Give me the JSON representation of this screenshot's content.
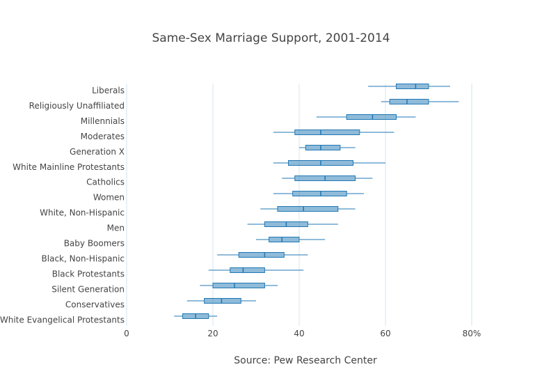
{
  "chart_data": {
    "type": "box",
    "title": "Same-Sex Marriage Support, 2001-2014",
    "xlabel": "Source: Pew Research Center",
    "ylabel": "",
    "xlim": [
      0,
      85
    ],
    "xticks": [
      0,
      20,
      40,
      60,
      80
    ],
    "xtick_labels": [
      "0",
      "20",
      "40",
      "60",
      "80%"
    ],
    "grid": true,
    "color": "#1f77b4",
    "gridcolor": "#d6e6f2",
    "categories": [
      "Liberals",
      "Religiously Unaffiliated",
      "Millennials",
      "Moderates",
      "Generation X",
      "White Mainline Protestants",
      "Catholics",
      "Women",
      "White, Non-Hispanic",
      "Men",
      "Baby Boomers",
      "Black, Non-Hispanic",
      "Black Protestants",
      "Silent Generation",
      "Conservatives",
      "White Evangelical Protestants"
    ],
    "boxes": [
      {
        "min": 56,
        "q1": 62.5,
        "median": 67,
        "q3": 70,
        "max": 75
      },
      {
        "min": 59,
        "q1": 61,
        "median": 65,
        "q3": 70,
        "max": 77
      },
      {
        "min": 44,
        "q1": 51,
        "median": 57,
        "q3": 62.5,
        "max": 67
      },
      {
        "min": 34,
        "q1": 39,
        "median": 45,
        "q3": 54,
        "max": 62
      },
      {
        "min": 40,
        "q1": 41.5,
        "median": 45,
        "q3": 49.5,
        "max": 53
      },
      {
        "min": 34,
        "q1": 37.5,
        "median": 45,
        "q3": 52.5,
        "max": 60
      },
      {
        "min": 36,
        "q1": 39,
        "median": 46,
        "q3": 53,
        "max": 57
      },
      {
        "min": 34,
        "q1": 38.5,
        "median": 45,
        "q3": 51,
        "max": 55
      },
      {
        "min": 31,
        "q1": 35,
        "median": 41,
        "q3": 49,
        "max": 53
      },
      {
        "min": 28,
        "q1": 32,
        "median": 37,
        "q3": 42,
        "max": 49
      },
      {
        "min": 30,
        "q1": 33,
        "median": 36,
        "q3": 40,
        "max": 46
      },
      {
        "min": 21,
        "q1": 26,
        "median": 32,
        "q3": 36.5,
        "max": 42
      },
      {
        "min": 19,
        "q1": 24,
        "median": 27,
        "q3": 32,
        "max": 41
      },
      {
        "min": 17,
        "q1": 20,
        "median": 25,
        "q3": 32,
        "max": 35
      },
      {
        "min": 14,
        "q1": 18,
        "median": 22,
        "q3": 26.5,
        "max": 30
      },
      {
        "min": 11,
        "q1": 13,
        "median": 16,
        "q3": 19,
        "max": 21
      }
    ]
  }
}
